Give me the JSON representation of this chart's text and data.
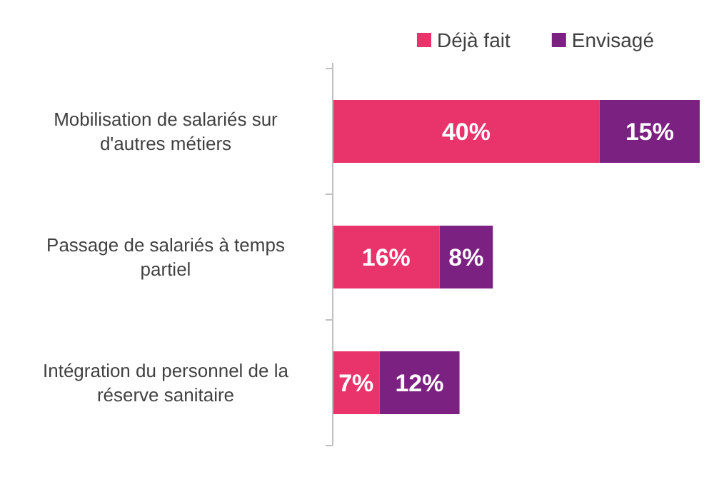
{
  "chart_data": {
    "type": "bar",
    "orientation": "horizontal",
    "stacked": true,
    "categories": [
      "Mobilisation de salariés sur d'autres métiers",
      "Passage de salariés à temps partiel",
      "Intégration du personnel de la réserve sanitaire"
    ],
    "series": [
      {
        "name": "Déjà fait",
        "color": "#e8336b",
        "values": [
          40,
          16,
          7
        ],
        "value_labels": [
          "40%",
          "16%",
          "7%"
        ]
      },
      {
        "name": "Envisagé",
        "color": "#7b2181",
        "values": [
          15,
          8,
          12
        ],
        "value_labels": [
          "15%",
          "8%",
          "12%"
        ]
      }
    ],
    "legend": "top right"
  }
}
